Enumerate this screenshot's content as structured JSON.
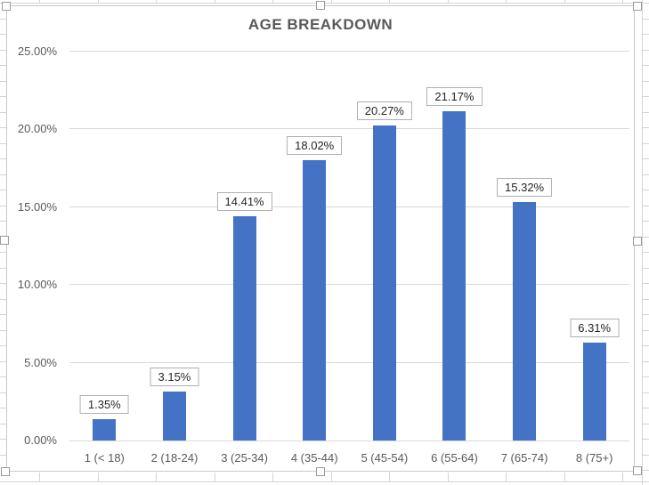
{
  "chart_data": {
    "type": "bar",
    "title": "AGE BREAKDOWN",
    "categories": [
      "1 (< 18)",
      "2 (18-24)",
      "3 (25-34)",
      "4 (35-44)",
      "5 (45-54)",
      "6 (55-64)",
      "7 (65-74)",
      "8 (75+)"
    ],
    "values": [
      1.35,
      3.15,
      14.41,
      18.02,
      20.27,
      21.17,
      15.32,
      6.31
    ],
    "data_labels": [
      "1.35%",
      "3.15%",
      "14.41%",
      "18.02%",
      "20.27%",
      "21.17%",
      "15.32%",
      "6.31%"
    ],
    "xlabel": "",
    "ylabel": "",
    "ylim": [
      0,
      25
    ],
    "ytick_step": 5,
    "ytick_labels": [
      "0.00%",
      "5.00%",
      "10.00%",
      "15.00%",
      "20.00%",
      "25.00%"
    ],
    "grid": true,
    "legend": "none",
    "bar_color": "#4472C4"
  },
  "colors": {
    "bar": "#4472C4",
    "plot_gridline": "#d9d9d9",
    "axis_text": "#595959",
    "title_text": "#595959",
    "data_label_text": "#262626",
    "data_label_border": "#b0b0b0",
    "chart_border": "#c9c9c9",
    "worksheet_gridline": "#d4d4d4"
  }
}
